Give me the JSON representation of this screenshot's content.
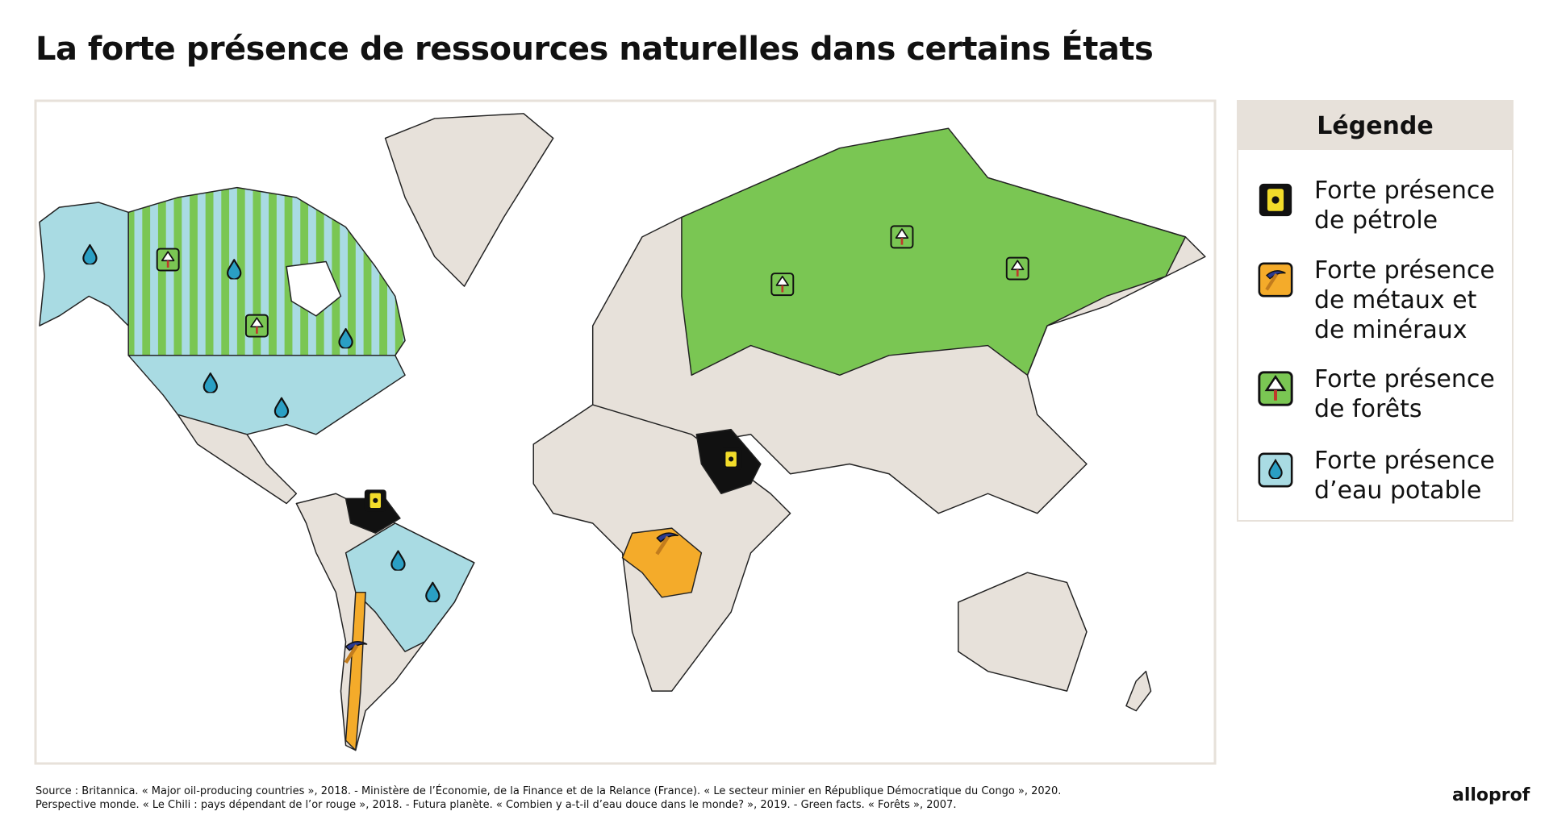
{
  "title": "La forte présence de ressources naturelles dans certains États",
  "legend": {
    "title": "Légende",
    "items": [
      {
        "lines": [
          "Forte présence",
          "de pétrole"
        ]
      },
      {
        "lines": [
          "Forte présence",
          "de métaux et",
          "de minéraux"
        ]
      },
      {
        "lines": [
          "Forte présence",
          "de forêts"
        ]
      },
      {
        "lines": [
          "Forte présence",
          "d’eau potable"
        ]
      }
    ]
  },
  "source": [
    "Source : Britannica. « Major oil-producing countries », 2018. - Ministère de l’Économie, de la Finance et de la Relance (France). « Le secteur minier en République Démocratique du Congo », 2020.",
    "Perspective monde. « Le Chili : pays dépendant de l’or rouge », 2018. - Futura planète. « Combien y a-t-il d’eau douce dans le monde? », 2019. - Green facts. « Forêts », 2007."
  ],
  "logo": "alloprof"
}
